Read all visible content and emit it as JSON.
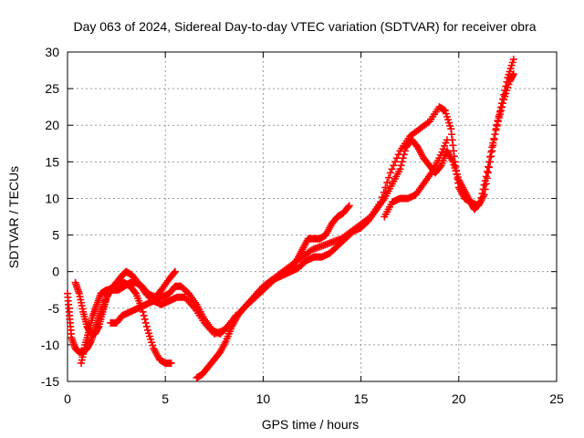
{
  "chart_data": {
    "type": "scatter",
    "title": "Day 063 of 2024, Sidereal Day-to-day VTEC variation (SDTVAR) for receiver obra",
    "xlabel": "GPS time / hours",
    "ylabel": "SDTVAR / TECUs",
    "xlim": [
      0,
      25
    ],
    "ylim": [
      -15,
      30
    ],
    "xticks": [
      0,
      5,
      10,
      15,
      20,
      25
    ],
    "yticks": [
      -15,
      -10,
      -5,
      0,
      5,
      10,
      15,
      20,
      25,
      30
    ],
    "grid": true,
    "legend": "none",
    "marker": "+",
    "color": "#ff0000",
    "series": [
      {
        "points": [
          [
            0.0,
            -3.0
          ],
          [
            0.1,
            -6.0
          ],
          [
            0.2,
            -9.0
          ],
          [
            0.4,
            -10.5
          ],
          [
            0.6,
            -11.0
          ],
          [
            0.8,
            -11.0
          ],
          [
            1.0,
            -10.5
          ],
          [
            1.2,
            -9.5
          ],
          [
            1.4,
            -8.0
          ],
          [
            1.6,
            -6.5
          ],
          [
            1.8,
            -5.0
          ],
          [
            2.0,
            -3.5
          ],
          [
            2.2,
            -2.5
          ],
          [
            2.5,
            -1.5
          ],
          [
            2.8,
            -0.5
          ],
          [
            3.0,
            0.0
          ],
          [
            3.3,
            -0.5
          ],
          [
            3.6,
            -1.5
          ],
          [
            4.0,
            -3.0
          ],
          [
            4.4,
            -4.0
          ],
          [
            4.8,
            -4.5
          ],
          [
            5.2,
            -4.0
          ],
          [
            5.6,
            -3.5
          ],
          [
            6.0,
            -3.5
          ],
          [
            6.5,
            -5.0
          ],
          [
            7.0,
            -7.0
          ],
          [
            7.5,
            -8.5
          ],
          [
            8.0,
            -8.0
          ],
          [
            8.5,
            -6.5
          ],
          [
            9.0,
            -5.0
          ],
          [
            9.5,
            -3.5
          ],
          [
            10.0,
            -2.0
          ],
          [
            10.5,
            -1.0
          ],
          [
            11.0,
            0.0
          ],
          [
            11.5,
            1.0
          ],
          [
            12.0,
            2.0
          ],
          [
            12.5,
            3.0
          ],
          [
            13.0,
            3.5
          ],
          [
            13.5,
            4.0
          ],
          [
            14.0,
            4.5
          ],
          [
            14.5,
            5.5
          ],
          [
            15.0,
            6.5
          ],
          [
            15.5,
            7.5
          ],
          [
            16.0,
            9.5
          ],
          [
            16.5,
            13.5
          ],
          [
            17.0,
            16.5
          ],
          [
            17.5,
            18.5
          ],
          [
            18.0,
            19.5
          ],
          [
            18.5,
            20.5
          ],
          [
            19.0,
            22.5
          ],
          [
            19.3,
            22.0
          ],
          [
            19.6,
            19.5
          ],
          [
            19.8,
            15.0
          ],
          [
            20.0,
            11.5
          ],
          [
            20.3,
            10.0
          ],
          [
            20.6,
            9.5
          ],
          [
            21.0,
            9.0
          ],
          [
            21.3,
            10.5
          ],
          [
            21.6,
            15.0
          ],
          [
            21.9,
            19.5
          ],
          [
            22.2,
            23.0
          ],
          [
            22.5,
            26.5
          ],
          [
            22.8,
            29.0
          ]
        ]
      },
      {
        "points": [
          [
            0.4,
            -1.5
          ],
          [
            0.6,
            -3.0
          ],
          [
            0.8,
            -5.5
          ],
          [
            1.0,
            -7.5
          ],
          [
            1.2,
            -8.5
          ],
          [
            1.4,
            -8.5
          ],
          [
            1.6,
            -7.5
          ],
          [
            1.8,
            -5.5
          ],
          [
            2.0,
            -3.5
          ],
          [
            2.3,
            -2.0
          ],
          [
            2.6,
            -1.5
          ],
          [
            2.9,
            -1.5
          ],
          [
            3.2,
            -2.0
          ],
          [
            3.5,
            -3.0
          ],
          [
            3.8,
            -5.0
          ],
          [
            4.1,
            -8.0
          ],
          [
            4.4,
            -10.5
          ],
          [
            4.7,
            -12.0
          ],
          [
            5.0,
            -12.5
          ],
          [
            5.3,
            -12.5
          ]
        ]
      },
      {
        "points": [
          [
            0.7,
            -12.5
          ],
          [
            0.9,
            -10.0
          ],
          [
            1.1,
            -8.0
          ],
          [
            1.3,
            -6.0
          ],
          [
            1.5,
            -4.5
          ],
          [
            1.7,
            -3.0
          ],
          [
            2.0,
            -2.5
          ],
          [
            2.3,
            -2.5
          ],
          [
            2.6,
            -2.5
          ],
          [
            2.9,
            -2.0
          ],
          [
            3.2,
            -1.5
          ],
          [
            3.5,
            -1.5
          ],
          [
            3.8,
            -2.0
          ],
          [
            4.1,
            -3.0
          ],
          [
            4.5,
            -3.5
          ],
          [
            4.8,
            -2.5
          ],
          [
            5.2,
            -1.0
          ],
          [
            5.5,
            0.0
          ]
        ]
      },
      {
        "points": [
          [
            2.2,
            -7.0
          ],
          [
            2.5,
            -7.0
          ],
          [
            2.8,
            -6.0
          ],
          [
            3.2,
            -5.5
          ],
          [
            3.6,
            -5.0
          ],
          [
            4.0,
            -4.5
          ],
          [
            4.4,
            -4.0
          ],
          [
            4.8,
            -3.5
          ],
          [
            5.2,
            -3.0
          ],
          [
            5.5,
            -2.0
          ],
          [
            5.8,
            -2.0
          ],
          [
            6.2,
            -3.0
          ],
          [
            6.6,
            -4.5
          ],
          [
            7.0,
            -6.5
          ],
          [
            7.4,
            -8.0
          ],
          [
            7.8,
            -8.5
          ],
          [
            8.2,
            -7.5
          ],
          [
            8.6,
            -6.0
          ]
        ]
      },
      {
        "points": [
          [
            6.6,
            -14.5
          ],
          [
            6.9,
            -14.0
          ],
          [
            7.2,
            -13.0
          ],
          [
            7.5,
            -12.0
          ],
          [
            7.8,
            -11.0
          ],
          [
            8.1,
            -9.5
          ],
          [
            8.4,
            -7.5
          ],
          [
            8.7,
            -6.0
          ],
          [
            9.0,
            -5.0
          ],
          [
            9.4,
            -4.0
          ],
          [
            9.8,
            -3.0
          ],
          [
            10.2,
            -2.0
          ],
          [
            10.6,
            -1.0
          ],
          [
            11.0,
            -0.5
          ],
          [
            11.4,
            0.0
          ],
          [
            11.8,
            0.5
          ],
          [
            12.2,
            1.5
          ],
          [
            12.6,
            2.0
          ],
          [
            13.0,
            2.0
          ],
          [
            13.4,
            2.5
          ],
          [
            13.8,
            3.5
          ],
          [
            14.2,
            4.5
          ],
          [
            14.6,
            5.5
          ],
          [
            15.0,
            6.0
          ],
          [
            15.4,
            7.0
          ],
          [
            15.8,
            8.5
          ],
          [
            16.2,
            10.0
          ],
          [
            16.6,
            12.0
          ],
          [
            17.0,
            14.0
          ],
          [
            17.3,
            17.0
          ],
          [
            17.6,
            18.0
          ],
          [
            17.9,
            17.0
          ],
          [
            18.2,
            15.5
          ],
          [
            18.5,
            14.5
          ],
          [
            18.8,
            13.5
          ],
          [
            19.1,
            14.5
          ],
          [
            19.4,
            16.5
          ],
          [
            19.7,
            15.0
          ],
          [
            20.0,
            12.5
          ],
          [
            20.3,
            11.0
          ],
          [
            20.6,
            9.5
          ],
          [
            20.8,
            8.5
          ],
          [
            21.1,
            9.5
          ],
          [
            21.4,
            13.0
          ],
          [
            21.7,
            17.0
          ],
          [
            22.0,
            20.5
          ],
          [
            22.3,
            23.5
          ],
          [
            22.6,
            26.0
          ],
          [
            22.8,
            27.0
          ]
        ]
      },
      {
        "points": [
          [
            11.4,
            0.5
          ],
          [
            11.7,
            1.5
          ],
          [
            12.0,
            3.0
          ],
          [
            12.3,
            4.5
          ],
          [
            12.6,
            4.5
          ],
          [
            12.9,
            4.5
          ],
          [
            13.2,
            5.0
          ],
          [
            13.5,
            6.5
          ],
          [
            13.8,
            7.5
          ],
          [
            14.1,
            8.0
          ],
          [
            14.4,
            9.0
          ]
        ]
      },
      {
        "points": [
          [
            16.2,
            7.5
          ],
          [
            16.6,
            9.5
          ],
          [
            17.0,
            10.0
          ],
          [
            17.4,
            10.0
          ],
          [
            17.8,
            10.5
          ],
          [
            18.2,
            12.0
          ],
          [
            18.6,
            13.5
          ],
          [
            19.0,
            15.5
          ],
          [
            19.4,
            18.0
          ]
        ]
      }
    ]
  }
}
